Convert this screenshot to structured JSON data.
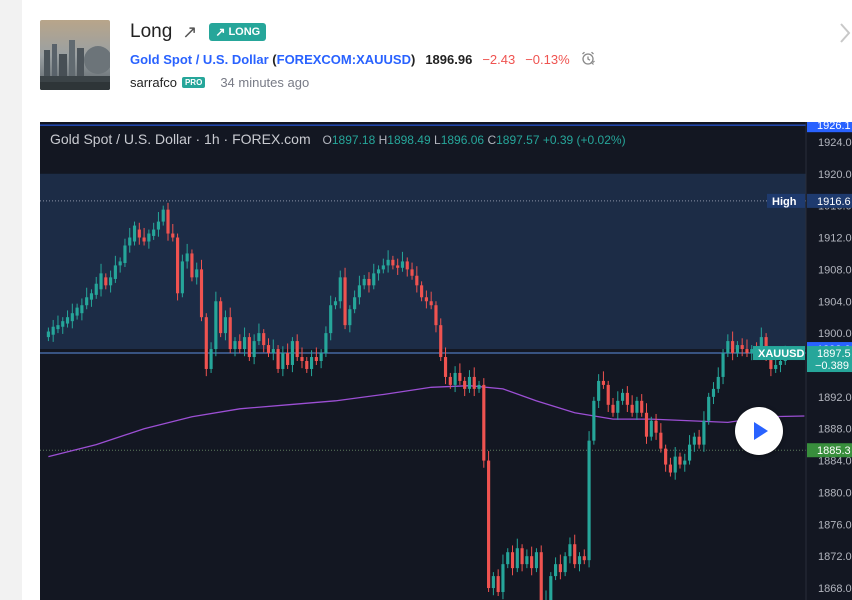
{
  "idea": {
    "title": "Long",
    "badge": "LONG",
    "symbol_name": "Gold Spot / U.S. Dollar",
    "exchange_symbol": "FOREXCOM:XAUUSD",
    "price": "1896.96",
    "change": "−2.43",
    "change_pct": "−0.13%",
    "author": "sarrafco",
    "author_badge": "PRO",
    "time_ago": "34 minutes ago"
  },
  "chart": {
    "legend_title": "Gold Spot / U.S. Dollar · 1h · FOREX.com",
    "o_label": "O",
    "o": "1897.18",
    "h_label": "H",
    "h": "1898.49",
    "l_label": "L",
    "l": "1896.06",
    "c_label": "C",
    "c": "1897.57",
    "chg": "+0.39 (+0.02%)",
    "colors": {
      "background": "#131722",
      "up": "#26a69a",
      "down": "#ef5350",
      "ma": "#9c4fd4",
      "highlight_band": "#1c2c46",
      "axis_text": "#b2b5be"
    }
  },
  "chart_data": {
    "type": "candlestick",
    "symbol": "XAUUSD",
    "timeframe": "1h",
    "ylim": [
      1866.5,
      1926.5
    ],
    "y_ticks": [
      "1924.0",
      "1920.0",
      "1916.0",
      "1912.0",
      "1908.0",
      "1904.0",
      "1900.0",
      "1896.0",
      "1892.0",
      "1888.0",
      "1884.0",
      "1880.0",
      "1876.0",
      "1872.0",
      "1868.0"
    ],
    "markers": [
      {
        "label": "",
        "value": "1926.1",
        "y": 1926.1,
        "color": "#2962ff"
      },
      {
        "label": "High",
        "value": "1916.6",
        "y": 1916.6,
        "color": "#1e3a6e"
      },
      {
        "label": "",
        "value": "1898.0",
        "y": 1898.0,
        "color": "#2962ff"
      },
      {
        "label": "XAUUSD",
        "value": "1897.5",
        "sub": "−0.389",
        "y": 1897.5,
        "color": "#26a69a"
      },
      {
        "label": "",
        "value": "1885.3",
        "y": 1885.3,
        "color": "#388e3c"
      }
    ],
    "highlight_band": [
      1898.0,
      1920.0
    ],
    "candles": [
      [
        1899.5,
        1900.2
      ],
      [
        1899.8,
        1900.8
      ],
      [
        1900.5,
        1901.0
      ],
      [
        1900.8,
        1901.5
      ],
      [
        1901.2,
        1902.0
      ],
      [
        1901.5,
        1902.5
      ],
      [
        1902.2,
        1903.2
      ],
      [
        1902.5,
        1903.5
      ],
      [
        1903.5,
        1904.5
      ],
      [
        1904.2,
        1905.0
      ],
      [
        1904.8,
        1906.2
      ],
      [
        1905.5,
        1907.5
      ],
      [
        1907.0,
        1906.0
      ],
      [
        1906.0,
        1907.0
      ],
      [
        1906.8,
        1908.5
      ],
      [
        1908.5,
        1909.0
      ],
      [
        1908.8,
        1911.0
      ],
      [
        1911.0,
        1912.0
      ],
      [
        1911.5,
        1913.5
      ],
      [
        1913.0,
        1912.0
      ],
      [
        1912.0,
        1911.5
      ],
      [
        1911.5,
        1912.5
      ],
      [
        1912.2,
        1913.0
      ],
      [
        1913.0,
        1914.0
      ],
      [
        1914.0,
        1915.5
      ],
      [
        1915.5,
        1912.5
      ],
      [
        1912.5,
        1912.0
      ],
      [
        1912.0,
        1905.0
      ],
      [
        1905.0,
        1909.0
      ],
      [
        1909.0,
        1910.0
      ],
      [
        1910.0,
        1907.0
      ],
      [
        1907.0,
        1908.0
      ],
      [
        1908.0,
        1902.0
      ],
      [
        1902.0,
        1895.5
      ],
      [
        1895.5,
        1898.0
      ],
      [
        1898.0,
        1904.0
      ],
      [
        1904.0,
        1900.0
      ],
      [
        1900.0,
        1902.0
      ],
      [
        1902.0,
        1898.0
      ],
      [
        1898.0,
        1899.0
      ],
      [
        1899.0,
        1898.0
      ],
      [
        1898.0,
        1899.5
      ],
      [
        1899.5,
        1897.0
      ],
      [
        1897.0,
        1899.0
      ],
      [
        1899.0,
        1900.0
      ],
      [
        1900.0,
        1898.5
      ],
      [
        1898.5,
        1897.5
      ],
      [
        1897.5,
        1898.0
      ],
      [
        1898.0,
        1895.5
      ],
      [
        1895.5,
        1897.5
      ],
      [
        1897.5,
        1896.0
      ],
      [
        1896.0,
        1899.0
      ],
      [
        1899.0,
        1897.0
      ],
      [
        1897.0,
        1896.5
      ],
      [
        1896.5,
        1895.5
      ],
      [
        1895.5,
        1897.0
      ],
      [
        1897.0,
        1896.5
      ],
      [
        1896.5,
        1897.5
      ],
      [
        1897.5,
        1900.0
      ],
      [
        1900.0,
        1903.5
      ],
      [
        1903.5,
        1904.0
      ],
      [
        1904.0,
        1907.0
      ],
      [
        1907.0,
        1901.0
      ],
      [
        1901.0,
        1903.0
      ],
      [
        1903.0,
        1904.5
      ],
      [
        1904.5,
        1906.0
      ],
      [
        1906.0,
        1906.8
      ],
      [
        1906.8,
        1906.0
      ],
      [
        1906.0,
        1907.5
      ],
      [
        1907.5,
        1908.0
      ],
      [
        1908.0,
        1908.5
      ],
      [
        1908.5,
        1909.2
      ],
      [
        1909.2,
        1908.5
      ],
      [
        1908.5,
        1908.2
      ],
      [
        1908.2,
        1909.0
      ],
      [
        1909.0,
        1908.0
      ],
      [
        1908.0,
        1907.2
      ],
      [
        1907.2,
        1906.0
      ],
      [
        1906.0,
        1904.5
      ],
      [
        1904.5,
        1904.0
      ],
      [
        1904.0,
        1903.5
      ],
      [
        1903.5,
        1901.0
      ],
      [
        1901.0,
        1897.0
      ],
      [
        1897.0,
        1894.5
      ],
      [
        1894.5,
        1893.5
      ],
      [
        1893.5,
        1895.0
      ],
      [
        1895.0,
        1894.0
      ],
      [
        1894.0,
        1893.0
      ],
      [
        1893.0,
        1894.5
      ],
      [
        1894.5,
        1893.0
      ],
      [
        1893.0,
        1893.5
      ],
      [
        1893.5,
        1884.0
      ],
      [
        1884.0,
        1868.0
      ],
      [
        1868.0,
        1869.5
      ],
      [
        1869.5,
        1867.5
      ],
      [
        1867.5,
        1871.0
      ],
      [
        1871.0,
        1872.5
      ],
      [
        1872.5,
        1870.5
      ],
      [
        1870.5,
        1873.0
      ],
      [
        1873.0,
        1871.0
      ],
      [
        1871.0,
        1872.0
      ],
      [
        1872.0,
        1870.5
      ],
      [
        1870.5,
        1872.5
      ],
      [
        1872.5,
        1866.0
      ],
      [
        1866.0,
        1866.5
      ],
      [
        1866.5,
        1869.5
      ],
      [
        1869.5,
        1871.0
      ],
      [
        1871.0,
        1870.0
      ],
      [
        1870.0,
        1872.0
      ],
      [
        1872.0,
        1873.5
      ],
      [
        1873.5,
        1871.0
      ],
      [
        1871.0,
        1872.0
      ],
      [
        1872.0,
        1871.5
      ],
      [
        1871.5,
        1886.5
      ],
      [
        1886.5,
        1891.5
      ],
      [
        1891.5,
        1894.0
      ],
      [
        1894.0,
        1893.5
      ],
      [
        1893.5,
        1891.0
      ],
      [
        1891.0,
        1890.0
      ],
      [
        1890.0,
        1891.5
      ],
      [
        1891.5,
        1892.5
      ],
      [
        1892.5,
        1891.0
      ],
      [
        1891.0,
        1890.0
      ],
      [
        1890.0,
        1891.5
      ],
      [
        1891.5,
        1890.0
      ],
      [
        1890.0,
        1887.0
      ],
      [
        1887.0,
        1889.0
      ],
      [
        1889.0,
        1887.5
      ],
      [
        1887.5,
        1885.5
      ],
      [
        1885.5,
        1883.5
      ],
      [
        1883.5,
        1882.5
      ],
      [
        1882.5,
        1884.5
      ],
      [
        1884.5,
        1883.5
      ],
      [
        1883.5,
        1884.0
      ],
      [
        1884.0,
        1886.0
      ],
      [
        1886.0,
        1887.0
      ],
      [
        1887.0,
        1886.0
      ],
      [
        1886.0,
        1889.0
      ],
      [
        1889.0,
        1892.0
      ],
      [
        1892.0,
        1893.0
      ],
      [
        1893.0,
        1894.5
      ],
      [
        1894.5,
        1897.5
      ],
      [
        1897.5,
        1899.0
      ],
      [
        1899.0,
        1897.5
      ],
      [
        1897.5,
        1898.5
      ],
      [
        1898.5,
        1898.0
      ],
      [
        1898.0,
        1897.5
      ],
      [
        1897.5,
        1898.0
      ],
      [
        1898.0,
        1897.8
      ],
      [
        1897.8,
        1899.5
      ],
      [
        1899.5,
        1897.0
      ],
      [
        1897.0,
        1895.5
      ],
      [
        1895.5,
        1896.0
      ],
      [
        1896.0,
        1896.5
      ],
      [
        1896.5,
        1897.57
      ]
    ],
    "ma": [
      [
        0,
        1884.5
      ],
      [
        10,
        1886.0
      ],
      [
        20,
        1888.0
      ],
      [
        30,
        1889.5
      ],
      [
        40,
        1890.5
      ],
      [
        50,
        1891.0
      ],
      [
        60,
        1891.5
      ],
      [
        70,
        1892.3
      ],
      [
        80,
        1893.2
      ],
      [
        88,
        1893.4
      ],
      [
        95,
        1893.0
      ],
      [
        102,
        1891.5
      ],
      [
        110,
        1890.0
      ],
      [
        118,
        1889.2
      ],
      [
        126,
        1889.2
      ],
      [
        134,
        1889.0
      ],
      [
        142,
        1888.8
      ],
      [
        150,
        1889.5
      ],
      [
        158,
        1889.6
      ]
    ]
  }
}
